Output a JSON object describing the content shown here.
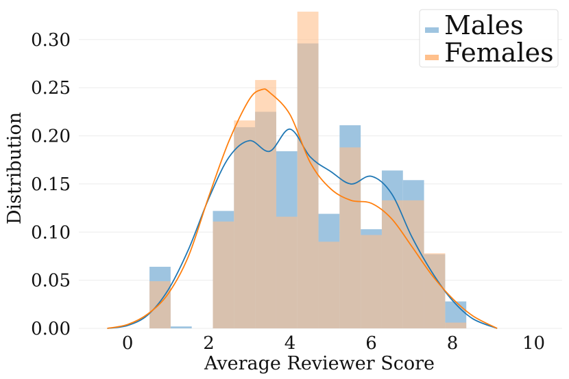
{
  "chart_data": {
    "type": "histogram",
    "xlabel": "Average Reviewer Score",
    "ylabel": "Distribution",
    "xlim": [
      -1.2,
      10.7
    ],
    "ylim": [
      0,
      0.334
    ],
    "xticks": [
      0,
      2,
      4,
      6,
      8,
      10
    ],
    "yticks": [
      0.0,
      0.05,
      0.1,
      0.15,
      0.2,
      0.25,
      0.3
    ],
    "ytick_labels": [
      "0.00",
      "0.05",
      "0.10",
      "0.15",
      "0.20",
      "0.25",
      "0.30"
    ],
    "grid": "horizontal",
    "legend_position": "top-right",
    "bin_edges": [
      0.54,
      1.06,
      1.58,
      2.1,
      2.62,
      3.14,
      3.66,
      4.18,
      4.7,
      5.22,
      5.74,
      6.26,
      6.78,
      7.3,
      7.82,
      8.34
    ],
    "series": [
      {
        "name": "Males",
        "color": "#1f77b4",
        "bar_color": "#9ec4e0",
        "values": [
          0.064,
          0.002,
          0.0,
          0.122,
          0.209,
          0.225,
          0.184,
          0.296,
          0.119,
          0.211,
          0.103,
          0.164,
          0.154,
          0.077,
          0.028
        ],
        "kde": [
          [
            -0.5,
            0.0
          ],
          [
            0.0,
            0.003
          ],
          [
            0.5,
            0.014
          ],
          [
            1.0,
            0.04
          ],
          [
            1.5,
            0.082
          ],
          [
            2.0,
            0.135
          ],
          [
            2.5,
            0.178
          ],
          [
            3.0,
            0.195
          ],
          [
            3.5,
            0.184
          ],
          [
            4.0,
            0.207
          ],
          [
            4.5,
            0.178
          ],
          [
            5.0,
            0.163
          ],
          [
            5.5,
            0.15
          ],
          [
            6.0,
            0.158
          ],
          [
            6.5,
            0.14
          ],
          [
            7.0,
            0.095
          ],
          [
            7.5,
            0.058
          ],
          [
            8.0,
            0.029
          ],
          [
            8.5,
            0.01
          ],
          [
            9.1,
            0.0
          ]
        ]
      },
      {
        "name": "Females",
        "color": "#ff7f0e",
        "bar_color": "#ffc08c",
        "values": [
          0.049,
          0.0,
          0.0,
          0.111,
          0.216,
          0.258,
          0.116,
          0.329,
          0.09,
          0.188,
          0.097,
          0.133,
          0.133,
          0.078,
          0.006
        ],
        "kde": [
          [
            -0.5,
            0.0
          ],
          [
            0.0,
            0.004
          ],
          [
            0.5,
            0.015
          ],
          [
            1.0,
            0.036
          ],
          [
            1.5,
            0.075
          ],
          [
            2.0,
            0.137
          ],
          [
            2.5,
            0.195
          ],
          [
            3.0,
            0.238
          ],
          [
            3.3,
            0.248
          ],
          [
            3.5,
            0.245
          ],
          [
            4.0,
            0.222
          ],
          [
            4.5,
            0.172
          ],
          [
            5.0,
            0.145
          ],
          [
            5.5,
            0.133
          ],
          [
            6.0,
            0.13
          ],
          [
            6.5,
            0.114
          ],
          [
            7.0,
            0.085
          ],
          [
            7.5,
            0.055
          ],
          [
            8.0,
            0.031
          ],
          [
            8.5,
            0.013
          ],
          [
            9.1,
            0.0
          ]
        ]
      }
    ]
  }
}
